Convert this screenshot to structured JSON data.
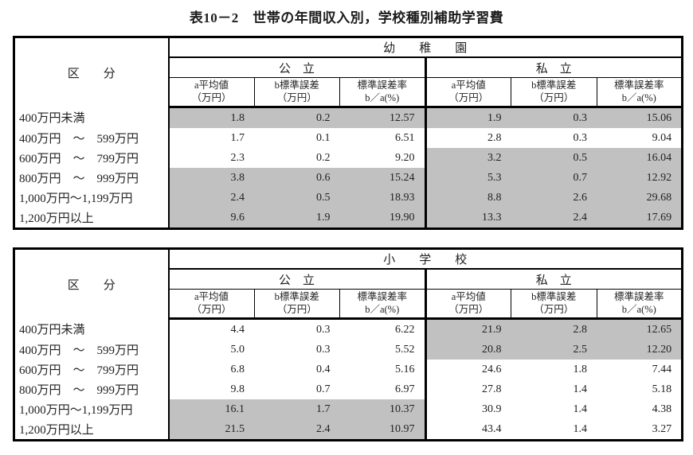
{
  "page_title": "表10－2　世帯の年間収入別，学校種別補助学習費",
  "colors": {
    "shaded_cell": "#c1c1c1",
    "border": "#000000",
    "text": "#222222",
    "background": "#ffffff"
  },
  "header_labels": {
    "category": "区　　分",
    "public": "公　立",
    "private": "私　立",
    "col_mean_line1": "a平均値",
    "col_mean_line2": "（万円）",
    "col_se_line1": "b標準誤差",
    "col_se_line2": "（万円）",
    "col_rate_line1": "標準誤差率",
    "col_rate_line2": "b／a(%)"
  },
  "tables": [
    {
      "school_type": "幼　　稚　　園",
      "rows": [
        {
          "label": "400万円未満",
          "public": {
            "mean": "1.8",
            "se": "0.2",
            "rate": "12.57",
            "shaded": true
          },
          "private": {
            "mean": "1.9",
            "se": "0.3",
            "rate": "15.06",
            "shaded": true
          }
        },
        {
          "label": "400万円　～　599万円",
          "public": {
            "mean": "1.7",
            "se": "0.1",
            "rate": "6.51",
            "shaded": false
          },
          "private": {
            "mean": "2.8",
            "se": "0.3",
            "rate": "9.04",
            "shaded": false
          }
        },
        {
          "label": "600万円　～　799万円",
          "public": {
            "mean": "2.3",
            "se": "0.2",
            "rate": "9.20",
            "shaded": false
          },
          "private": {
            "mean": "3.2",
            "se": "0.5",
            "rate": "16.04",
            "shaded": true
          }
        },
        {
          "label": "800万円　～　999万円",
          "public": {
            "mean": "3.8",
            "se": "0.6",
            "rate": "15.24",
            "shaded": true
          },
          "private": {
            "mean": "5.3",
            "se": "0.7",
            "rate": "12.92",
            "shaded": true
          }
        },
        {
          "label": "1,000万円～1,199万円",
          "public": {
            "mean": "2.4",
            "se": "0.5",
            "rate": "18.93",
            "shaded": true
          },
          "private": {
            "mean": "8.8",
            "se": "2.6",
            "rate": "29.68",
            "shaded": true
          }
        },
        {
          "label": "1,200万円以上",
          "public": {
            "mean": "9.6",
            "se": "1.9",
            "rate": "19.90",
            "shaded": true
          },
          "private": {
            "mean": "13.3",
            "se": "2.4",
            "rate": "17.69",
            "shaded": true
          }
        }
      ]
    },
    {
      "school_type": "小　　学　　校",
      "rows": [
        {
          "label": "400万円未満",
          "public": {
            "mean": "4.4",
            "se": "0.3",
            "rate": "6.22",
            "shaded": false
          },
          "private": {
            "mean": "21.9",
            "se": "2.8",
            "rate": "12.65",
            "shaded": true
          }
        },
        {
          "label": "400万円　～　599万円",
          "public": {
            "mean": "5.0",
            "se": "0.3",
            "rate": "5.52",
            "shaded": false
          },
          "private": {
            "mean": "20.8",
            "se": "2.5",
            "rate": "12.20",
            "shaded": true
          }
        },
        {
          "label": "600万円　～　799万円",
          "public": {
            "mean": "6.8",
            "se": "0.4",
            "rate": "5.16",
            "shaded": false
          },
          "private": {
            "mean": "24.6",
            "se": "1.8",
            "rate": "7.44",
            "shaded": false
          }
        },
        {
          "label": "800万円　～　999万円",
          "public": {
            "mean": "9.8",
            "se": "0.7",
            "rate": "6.97",
            "shaded": false
          },
          "private": {
            "mean": "27.8",
            "se": "1.4",
            "rate": "5.18",
            "shaded": false
          }
        },
        {
          "label": "1,000万円～1,199万円",
          "public": {
            "mean": "16.1",
            "se": "1.7",
            "rate": "10.37",
            "shaded": true
          },
          "private": {
            "mean": "30.9",
            "se": "1.4",
            "rate": "4.38",
            "shaded": false
          }
        },
        {
          "label": "1,200万円以上",
          "public": {
            "mean": "21.5",
            "se": "2.4",
            "rate": "10.97",
            "shaded": true
          },
          "private": {
            "mean": "43.4",
            "se": "1.4",
            "rate": "3.27",
            "shaded": false
          }
        }
      ]
    }
  ]
}
